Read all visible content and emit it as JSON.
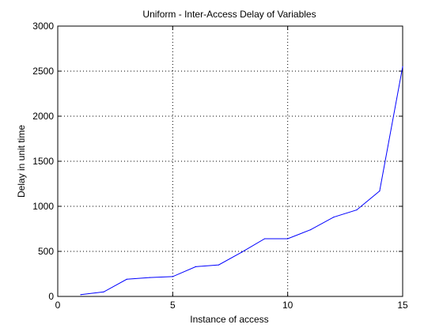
{
  "chart_data": {
    "type": "line",
    "title": "Uniform - Inter-Access Delay of Variables",
    "xlabel": "Instance of access",
    "ylabel": "Delay in unit time",
    "xlim": [
      0,
      15
    ],
    "ylim": [
      0,
      3000
    ],
    "xticks": [
      0,
      5,
      10,
      15
    ],
    "yticks": [
      0,
      500,
      1000,
      1500,
      2000,
      2500,
      3000
    ],
    "grid": true,
    "series": [
      {
        "color": "#0000ff",
        "x": [
          1,
          2,
          3,
          4,
          5,
          6,
          7,
          8,
          9,
          10,
          11,
          12,
          13,
          14,
          15
        ],
        "y": [
          20,
          50,
          190,
          210,
          220,
          330,
          350,
          490,
          640,
          640,
          740,
          880,
          960,
          1170,
          2550
        ]
      }
    ]
  }
}
